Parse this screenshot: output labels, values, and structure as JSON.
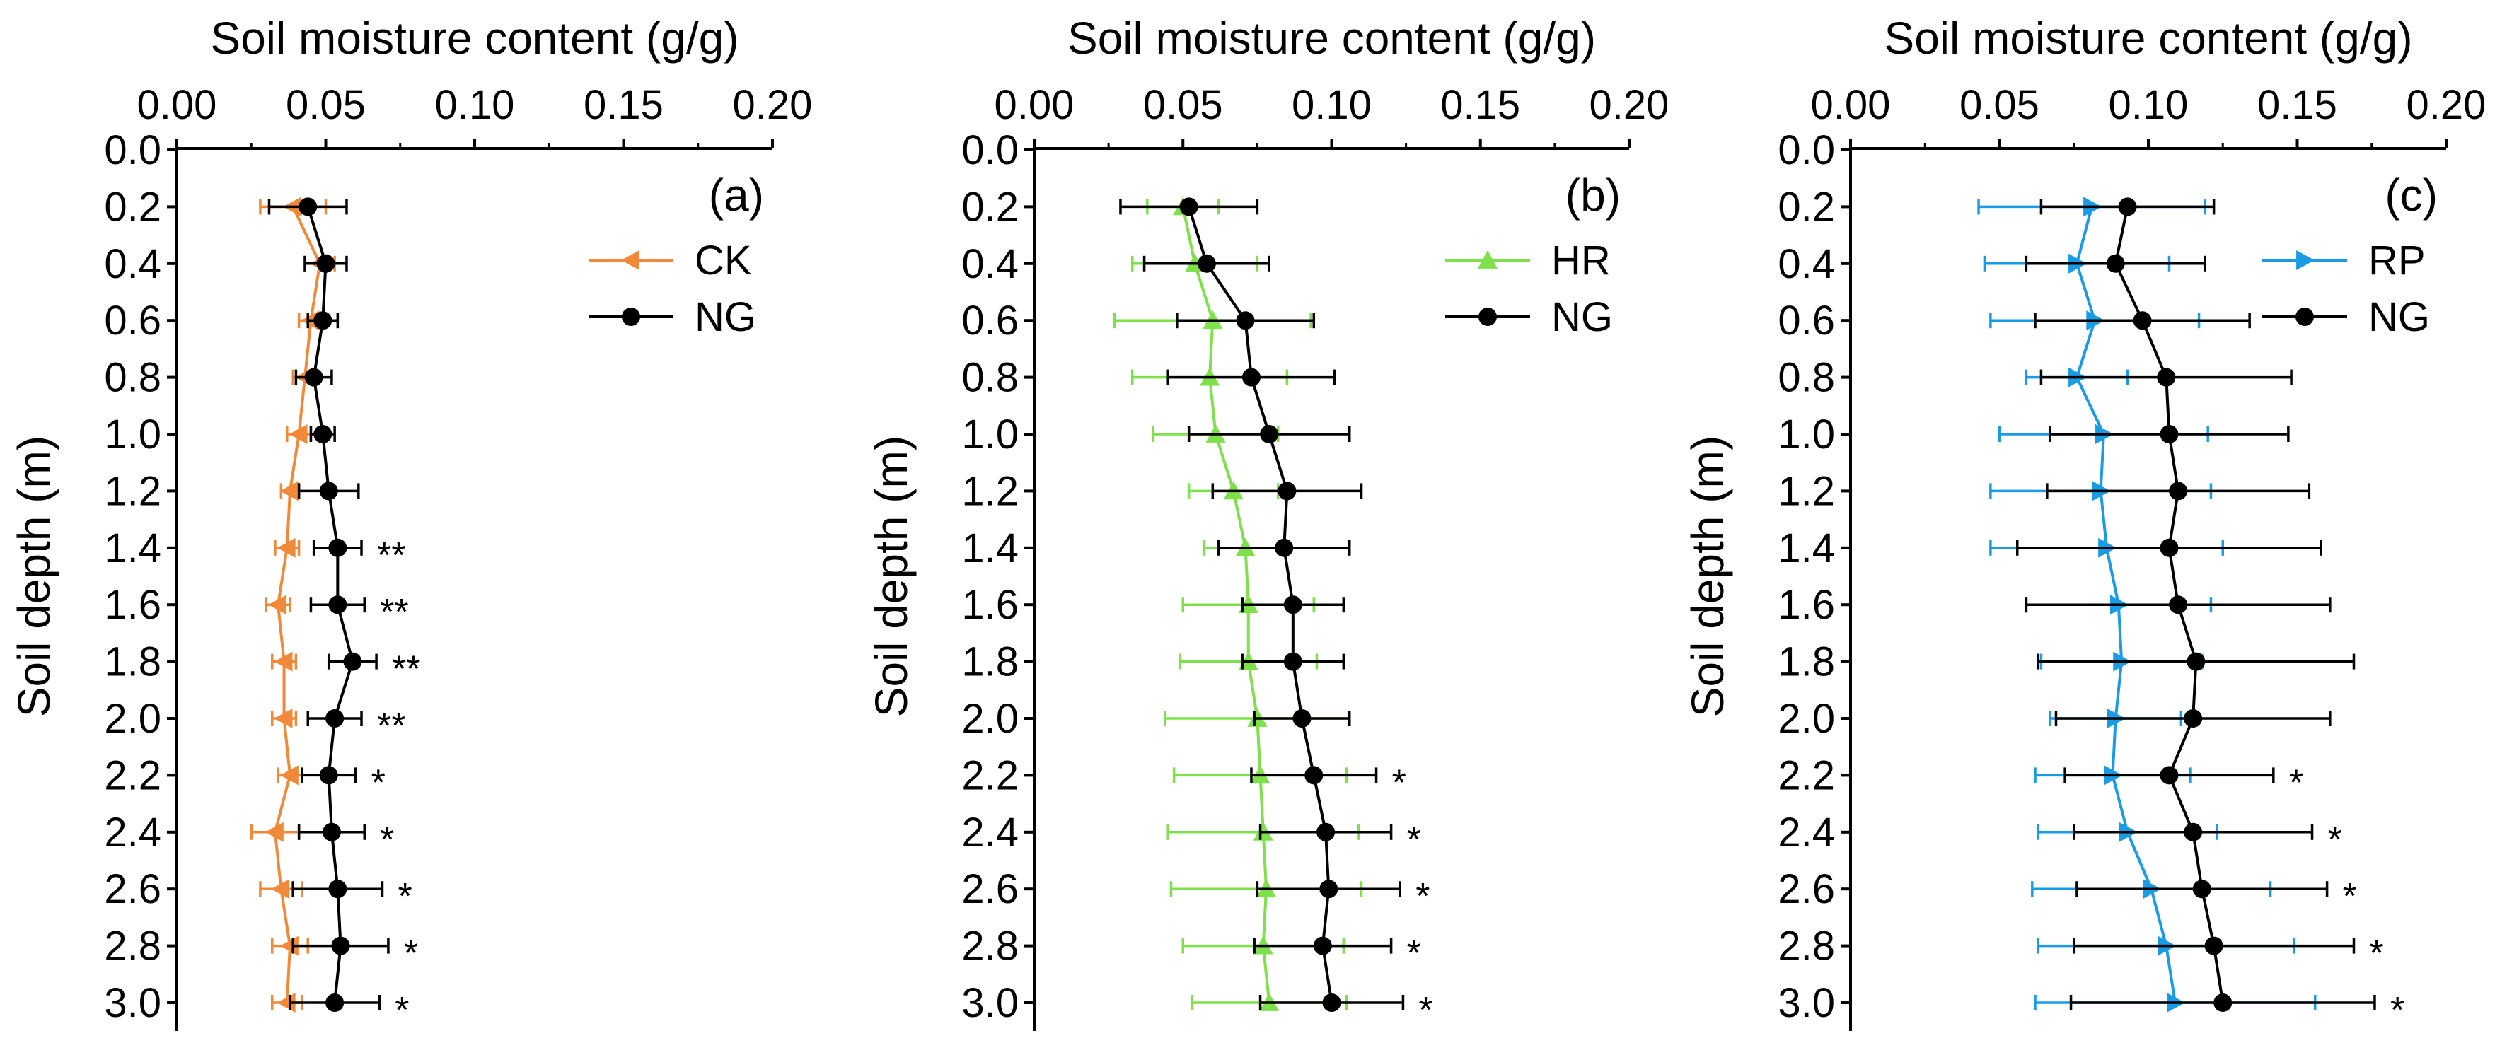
{
  "colors": {
    "ng": "#000000",
    "ck": "#F08A3A",
    "hr": "#7EE04A",
    "rp": "#1A9BE6"
  },
  "chart_data": [
    {
      "type": "line",
      "panel_label": "(a)",
      "xlabel": "Soil moisture content (g/g)",
      "ylabel": "Soil depth (m)",
      "xlim": [
        0,
        0.2
      ],
      "ylim": [
        0,
        3.0
      ],
      "x_ticks": [
        "0.00",
        "0.05",
        "0.10",
        "0.15",
        "0.20"
      ],
      "y_ticks": [
        "0.0",
        "0.2",
        "0.4",
        "0.6",
        "0.8",
        "1.0",
        "1.2",
        "1.4",
        "1.6",
        "1.8",
        "2.0",
        "2.2",
        "2.4",
        "2.6",
        "2.8",
        "3.0"
      ],
      "depths": [
        0.2,
        0.4,
        0.6,
        0.8,
        1.0,
        1.2,
        1.4,
        1.6,
        1.8,
        2.0,
        2.2,
        2.4,
        2.6,
        2.8,
        3.0
      ],
      "legend_position": "top-right",
      "series": [
        {
          "name": "CK",
          "marker": "triangle-left",
          "color": "#F08A3A",
          "values": [
            0.039,
            0.048,
            0.045,
            0.043,
            0.041,
            0.038,
            0.037,
            0.034,
            0.036,
            0.036,
            0.038,
            0.033,
            0.035,
            0.038,
            0.037
          ],
          "errors": [
            0.011,
            0.005,
            0.004,
            0.004,
            0.004,
            0.003,
            0.004,
            0.004,
            0.004,
            0.004,
            0.004,
            0.008,
            0.007,
            0.006,
            0.005
          ]
        },
        {
          "name": "NG",
          "marker": "circle",
          "color": "#000000",
          "values": [
            0.044,
            0.05,
            0.049,
            0.046,
            0.049,
            0.051,
            0.054,
            0.054,
            0.059,
            0.053,
            0.051,
            0.052,
            0.054,
            0.055,
            0.053
          ],
          "errors": [
            0.013,
            0.007,
            0.005,
            0.006,
            0.004,
            0.01,
            0.008,
            0.009,
            0.008,
            0.009,
            0.009,
            0.011,
            0.015,
            0.016,
            0.015
          ]
        }
      ],
      "significance": [
        "",
        "",
        "",
        "",
        "",
        "",
        "**",
        "**",
        "**",
        "**",
        "*",
        "*",
        "*",
        "*",
        "*"
      ]
    },
    {
      "type": "line",
      "panel_label": "(b)",
      "xlabel": "Soil moisture content (g/g)",
      "ylabel": "Soil depth (m)",
      "xlim": [
        0,
        0.2
      ],
      "ylim": [
        0,
        3.0
      ],
      "x_ticks": [
        "0.00",
        "0.05",
        "0.10",
        "0.15",
        "0.20"
      ],
      "y_ticks": [
        "0.0",
        "0.2",
        "0.4",
        "0.6",
        "0.8",
        "1.0",
        "1.2",
        "1.4",
        "1.6",
        "1.8",
        "2.0",
        "2.2",
        "2.4",
        "2.6",
        "2.8",
        "3.0"
      ],
      "depths": [
        0.2,
        0.4,
        0.6,
        0.8,
        1.0,
        1.2,
        1.4,
        1.6,
        1.8,
        2.0,
        2.2,
        2.4,
        2.6,
        2.8,
        3.0
      ],
      "legend_position": "top-right",
      "series": [
        {
          "name": "HR",
          "marker": "triangle-up",
          "color": "#7EE04A",
          "values": [
            0.05,
            0.054,
            0.06,
            0.059,
            0.061,
            0.067,
            0.071,
            0.072,
            0.072,
            0.075,
            0.076,
            0.077,
            0.078,
            0.077,
            0.079
          ],
          "errors": [
            0.012,
            0.021,
            0.033,
            0.026,
            0.021,
            0.015,
            0.014,
            0.022,
            0.023,
            0.031,
            0.029,
            0.032,
            0.032,
            0.027,
            0.026
          ]
        },
        {
          "name": "NG",
          "marker": "circle",
          "color": "#000000",
          "values": [
            0.052,
            0.058,
            0.071,
            0.073,
            0.079,
            0.085,
            0.084,
            0.087,
            0.087,
            0.09,
            0.094,
            0.098,
            0.099,
            0.097,
            0.1
          ],
          "errors": [
            0.023,
            0.021,
            0.023,
            0.028,
            0.027,
            0.025,
            0.022,
            0.017,
            0.017,
            0.016,
            0.021,
            0.022,
            0.024,
            0.023,
            0.024
          ]
        }
      ],
      "significance": [
        "",
        "",
        "",
        "",
        "",
        "",
        "",
        "",
        "",
        "",
        "*",
        "*",
        "*",
        "*",
        "*"
      ]
    },
    {
      "type": "line",
      "panel_label": "(c)",
      "xlabel": "Soil moisture content (g/g)",
      "ylabel": "Soil depth (m)",
      "xlim": [
        0,
        0.2
      ],
      "ylim": [
        0,
        3.0
      ],
      "x_ticks": [
        "0.00",
        "0.05",
        "0.10",
        "0.15",
        "0.20"
      ],
      "y_ticks": [
        "0.0",
        "0.2",
        "0.4",
        "0.6",
        "0.8",
        "1.0",
        "1.2",
        "1.4",
        "1.6",
        "1.8",
        "2.0",
        "2.2",
        "2.4",
        "2.6",
        "2.8",
        "3.0"
      ],
      "depths": [
        0.2,
        0.4,
        0.6,
        0.8,
        1.0,
        1.2,
        1.4,
        1.6,
        1.8,
        2.0,
        2.2,
        2.4,
        2.6,
        2.8,
        3.0
      ],
      "legend_position": "top-right",
      "series": [
        {
          "name": "RP",
          "marker": "triangle-right",
          "color": "#1A9BE6",
          "values": [
            0.081,
            0.076,
            0.082,
            0.076,
            0.085,
            0.084,
            0.086,
            0.09,
            0.091,
            0.089,
            0.088,
            0.093,
            0.101,
            0.106,
            0.109
          ],
          "errors": [
            0.038,
            0.031,
            0.035,
            0.017,
            0.035,
            0.037,
            0.039,
            0.031,
            0.027,
            0.022,
            0.026,
            0.03,
            0.04,
            0.043,
            0.047
          ]
        },
        {
          "name": "NG",
          "marker": "circle",
          "color": "#000000",
          "values": [
            0.093,
            0.089,
            0.098,
            0.106,
            0.107,
            0.11,
            0.107,
            0.11,
            0.116,
            0.115,
            0.107,
            0.115,
            0.118,
            0.122,
            0.125
          ],
          "errors": [
            0.029,
            0.03,
            0.036,
            0.042,
            0.04,
            0.044,
            0.051,
            0.051,
            0.053,
            0.046,
            0.035,
            0.04,
            0.042,
            0.047,
            0.051
          ]
        }
      ],
      "significance": [
        "",
        "",
        "",
        "",
        "",
        "",
        "",
        "",
        "",
        "",
        "*",
        "*",
        "*",
        "*",
        "*"
      ]
    }
  ]
}
